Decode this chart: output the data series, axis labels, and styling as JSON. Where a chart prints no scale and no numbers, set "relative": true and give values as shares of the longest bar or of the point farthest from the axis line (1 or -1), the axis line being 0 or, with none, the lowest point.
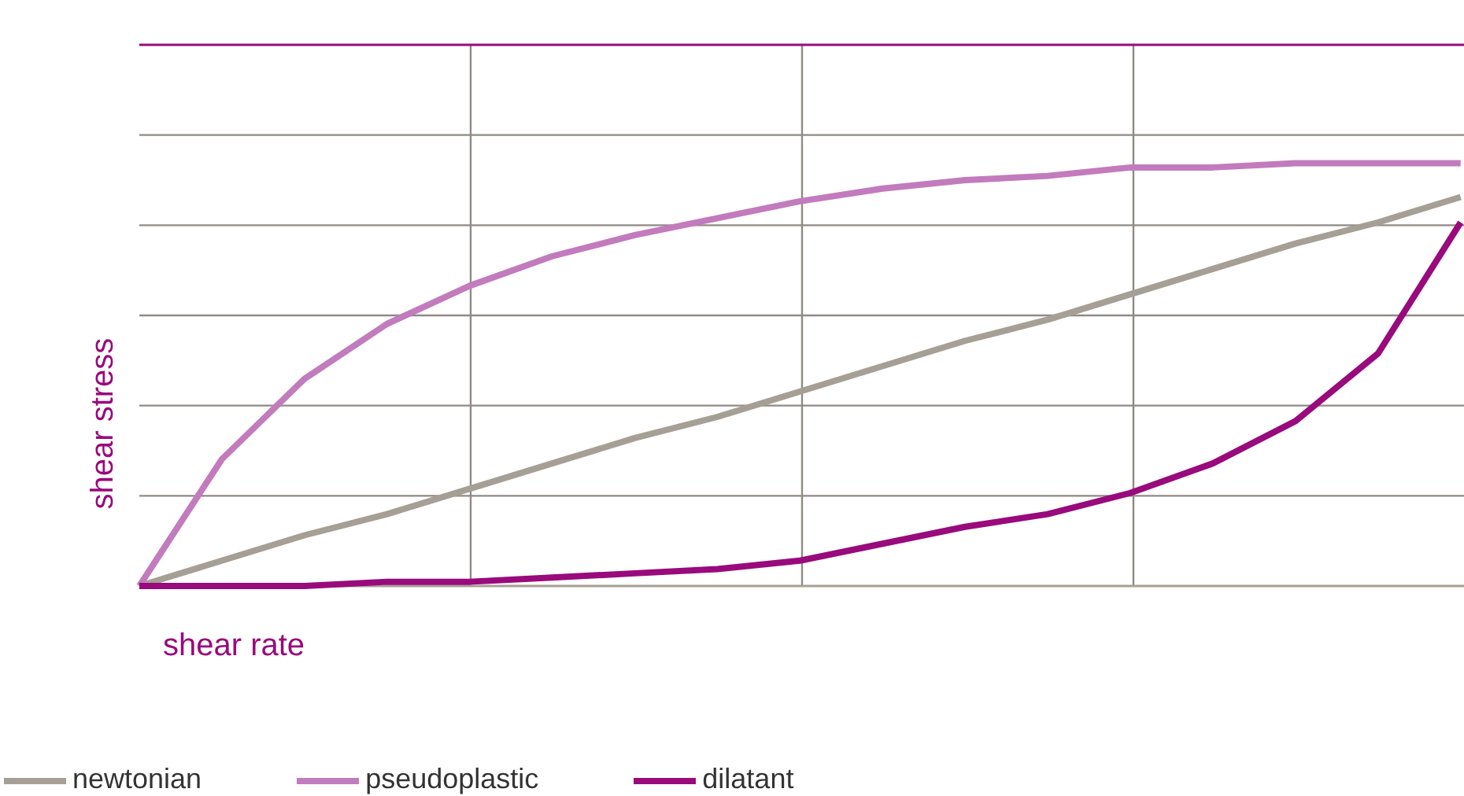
{
  "chart_data": {
    "type": "line",
    "relative": true,
    "xlabel": "shear rate",
    "ylabel": "shear stress",
    "grid": true,
    "legend": "bottom",
    "marker": "none",
    "line_style": "solid",
    "categories": [
      null,
      null,
      null,
      null,
      null,
      null,
      null,
      null,
      null,
      null,
      null,
      null,
      null,
      null,
      null,
      null,
      null
    ],
    "series": [
      {
        "name": "newtonian",
        "color": "#a69f95",
        "values": [
          0,
          0.06,
          0.12,
          0.17,
          0.23,
          0.29,
          0.35,
          0.4,
          0.46,
          0.52,
          0.58,
          0.63,
          0.69,
          0.75,
          0.81,
          0.86,
          0.92
        ]
      },
      {
        "name": "pseudoplastic",
        "color": "#c27bbd",
        "values": [
          0,
          0.3,
          0.49,
          0.62,
          0.71,
          0.78,
          0.83,
          0.87,
          0.91,
          0.94,
          0.96,
          0.97,
          0.99,
          0.99,
          1,
          1,
          1
        ]
      },
      {
        "name": "dilatant",
        "color": "#990a7c",
        "values": [
          0,
          0,
          0,
          0.01,
          0.01,
          0.02,
          0.03,
          0.04,
          0.06,
          0.1,
          0.14,
          0.17,
          0.22,
          0.29,
          0.39,
          0.55,
          0.86
        ]
      }
    ]
  }
}
